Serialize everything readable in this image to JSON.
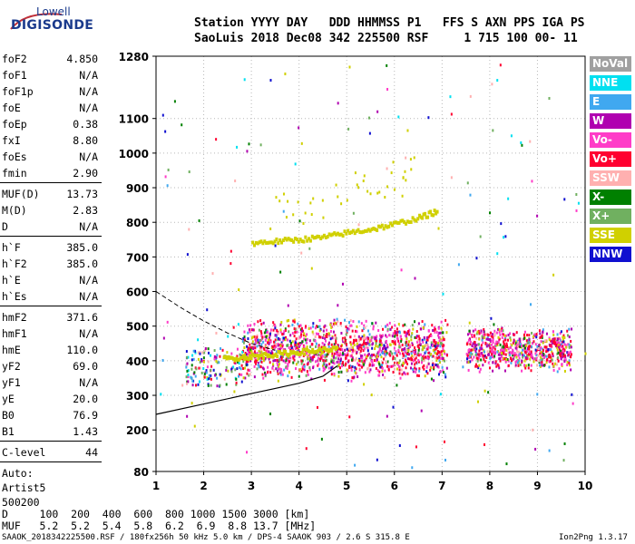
{
  "logo": {
    "line1": "Lowell",
    "line2": "DIGISONDE"
  },
  "header": {
    "line1": "Station YYYY DAY   DDD HHMMSS P1   FFS S AXN PPS IGA PS",
    "line2": "SaoLuis 2018 Dec08 342 225500 RSF     1 715 100 00- 11"
  },
  "params_group1": [
    {
      "name": "foF2",
      "value": "4.850"
    },
    {
      "name": "foF1",
      "value": "N/A"
    },
    {
      "name": "foF1p",
      "value": "N/A"
    },
    {
      "name": "foE",
      "value": "N/A"
    },
    {
      "name": "foEp",
      "value": "0.38"
    },
    {
      "name": "fxI",
      "value": "8.80"
    },
    {
      "name": "foEs",
      "value": "N/A"
    },
    {
      "name": "fmin",
      "value": "2.90"
    }
  ],
  "params_group2": [
    {
      "name": "MUF(D)",
      "value": "13.73"
    },
    {
      "name": "M(D)",
      "value": "2.83"
    },
    {
      "name": "D",
      "value": "N/A"
    }
  ],
  "params_group3": [
    {
      "name": "h`F",
      "value": "385.0"
    },
    {
      "name": "h`F2",
      "value": "385.0"
    },
    {
      "name": "h`E",
      "value": "N/A"
    },
    {
      "name": "h`Es",
      "value": "N/A"
    }
  ],
  "params_group4": [
    {
      "name": "hmF2",
      "value": "371.6"
    },
    {
      "name": "hmF1",
      "value": "N/A"
    },
    {
      "name": "hmE",
      "value": "110.0"
    },
    {
      "name": "yF2",
      "value": "69.0"
    },
    {
      "name": "yF1",
      "value": "N/A"
    },
    {
      "name": "yE",
      "value": "20.0"
    },
    {
      "name": "B0",
      "value": "76.9"
    },
    {
      "name": "B1",
      "value": "1.43"
    }
  ],
  "params_group5": [
    {
      "name": "C-level",
      "value": "44"
    }
  ],
  "autoscale": {
    "line1": "Auto:",
    "line2": "Artist5",
    "line3": "500200"
  },
  "legend": [
    {
      "label": "NoVal",
      "color": "#a0a0a0"
    },
    {
      "label": "NNE",
      "color": "#00e0f0"
    },
    {
      "label": "E",
      "color": "#40a8f0"
    },
    {
      "label": "W",
      "color": "#b000b0"
    },
    {
      "label": "Vo-",
      "color": "#ff3cc8"
    },
    {
      "label": "Vo+",
      "color": "#ff0030"
    },
    {
      "label": "SSW",
      "color": "#ffb0b0"
    },
    {
      "label": "X-",
      "color": "#008000"
    },
    {
      "label": "X+",
      "color": "#70b060"
    },
    {
      "label": "SSE",
      "color": "#d0d000"
    },
    {
      "label": "NNW",
      "color": "#1010d0"
    }
  ],
  "muf_table": {
    "d_row": "D     100  200  400  600  800 1000 1500 3000 [km]",
    "muf_row": "MUF   5.2  5.2  5.4  5.8  6.2  6.9  8.8 13.7 [MHz]"
  },
  "footer": {
    "left": "SAAOK_2018342225500.RSF / 180fx256h 50 kHz 5.0 km / DPS-4 SAAOK 903 / 2.6 S 315.8 E",
    "right": "Ion2Png 1.3.17"
  },
  "chart_data": {
    "type": "scatter",
    "xlabel": "",
    "ylabel": "",
    "xlim": [
      1,
      10
    ],
    "ylim": [
      80,
      1280
    ],
    "x_ticks": [
      1,
      2,
      3,
      4,
      5,
      6,
      7,
      8,
      9,
      10
    ],
    "y_ticks": [
      80,
      200,
      300,
      400,
      500,
      600,
      700,
      800,
      900,
      1000,
      1100,
      1280
    ],
    "grid": true,
    "legend_position": "right",
    "profile_line": {
      "name": "profile",
      "x": [
        1.0,
        2.0,
        3.0,
        3.5,
        4.0,
        4.5,
        4.8
      ],
      "y": [
        245,
        275,
        305,
        320,
        335,
        355,
        385
      ]
    },
    "profile_dashed": {
      "x": [
        1.0,
        1.5,
        2.0,
        2.5,
        3.0,
        3.5
      ],
      "y": [
        600,
        555,
        515,
        480,
        450,
        430
      ]
    },
    "traces": [
      {
        "name": "F2 O-trace",
        "color": "#d0d000",
        "x": [
          3.0,
          3.5,
          4.0,
          4.5,
          5.0,
          5.5,
          6.0,
          6.5,
          6.9
        ],
        "y": [
          745,
          750,
          755,
          762,
          775,
          785,
          800,
          818,
          838
        ]
      },
      {
        "name": "F2 O-trace low",
        "color": "#d0d000",
        "x": [
          2.4,
          2.8,
          3.2,
          3.6,
          4.0,
          4.4,
          4.8
        ],
        "y": [
          410,
          415,
          420,
          425,
          430,
          435,
          440
        ]
      }
    ],
    "echo_bands": [
      {
        "x_start": 2.8,
        "x_end": 7.1,
        "y_low": 340,
        "y_high": 530
      },
      {
        "x_start": 7.5,
        "x_end": 9.7,
        "y_low": 370,
        "y_high": 500
      }
    ]
  }
}
